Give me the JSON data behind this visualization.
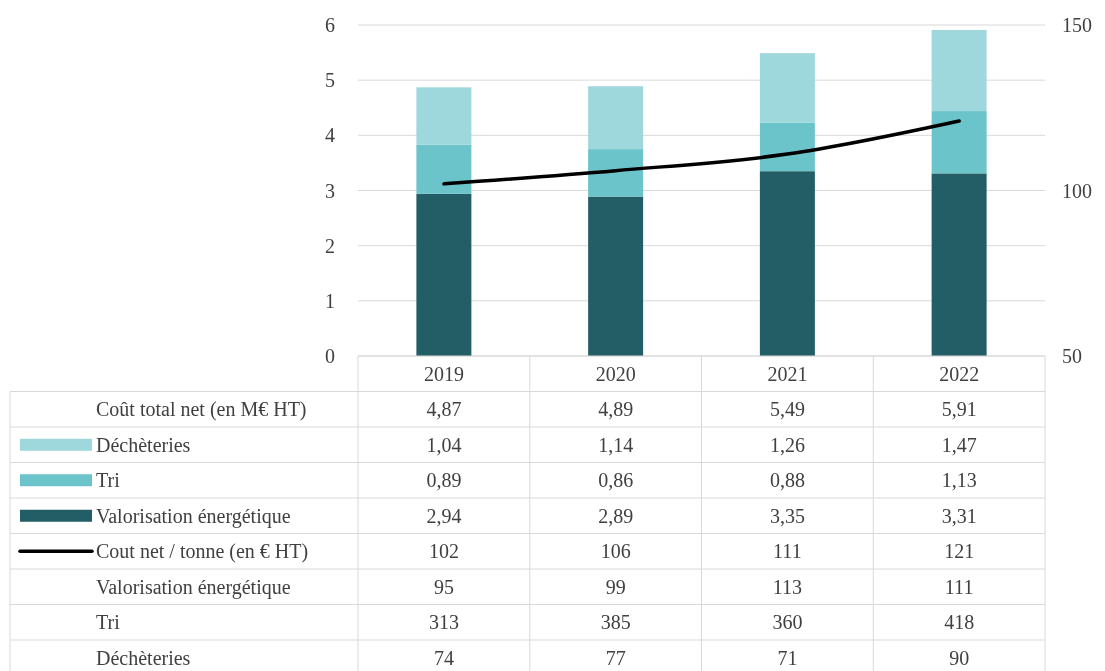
{
  "chart_data": {
    "type": "bar",
    "stacked": true,
    "categories": [
      "2019",
      "2020",
      "2021",
      "2022"
    ],
    "ylim": [
      0,
      6
    ],
    "yticks": [
      0,
      1,
      2,
      3,
      4,
      5,
      6
    ],
    "y2lim": [
      50,
      150
    ],
    "y2ticks": [
      50,
      100,
      150
    ],
    "grid": "y",
    "legend": "bottom",
    "totals": [
      "4,87",
      "4,89",
      "5,49",
      "5,91"
    ],
    "annotations": [
      "Coût total net (en M€ HT)"
    ],
    "series": [
      {
        "name": "Valorisation énergétique",
        "color": "#235e66",
        "values": [
          2.94,
          2.89,
          3.35,
          3.31
        ],
        "value_labels": [
          "2,94",
          "2,89",
          "3,35",
          "3,31"
        ]
      },
      {
        "name": "Tri",
        "color": "#6cc4cb",
        "values": [
          0.89,
          0.86,
          0.88,
          1.13
        ],
        "value_labels": [
          "0,89",
          "0,86",
          "0,88",
          "1,13"
        ]
      },
      {
        "name": "Déchèteries",
        "color": "#9fd8dc",
        "values": [
          1.04,
          1.14,
          1.26,
          1.47
        ],
        "value_labels": [
          "1,04",
          "1,14",
          "1,26",
          "1,47"
        ]
      },
      {
        "name": "Cout net / tonne (en € HT)",
        "type": "line",
        "axis": "y2",
        "color": "#000000",
        "values": [
          102,
          106,
          111,
          121
        ],
        "value_labels": [
          "102",
          "106",
          "111",
          "121"
        ]
      },
      {
        "name": "Valorisation énergétique",
        "type": "other",
        "values": [
          null,
          null,
          null,
          null
        ],
        "value_labels": [
          "95",
          "99",
          "113",
          "111"
        ]
      },
      {
        "name": "Tri",
        "type": "other",
        "values": [
          null,
          null,
          null,
          null
        ],
        "value_labels": [
          "313",
          "385",
          "360",
          "418"
        ]
      },
      {
        "name": "Déchèteries",
        "type": "other",
        "values": [
          null,
          null,
          null,
          null
        ],
        "value_labels": [
          "74",
          "77",
          "71",
          "90"
        ]
      }
    ]
  }
}
